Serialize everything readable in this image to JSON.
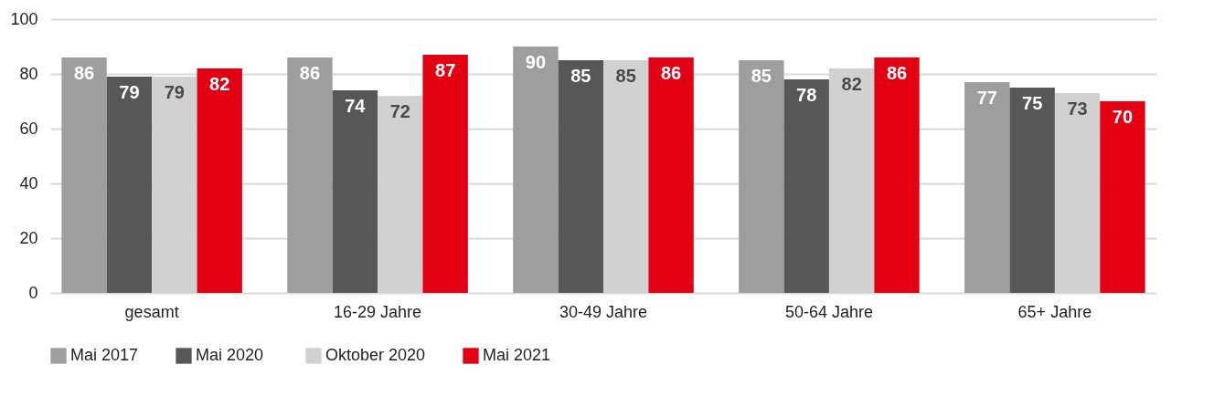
{
  "chart_data": {
    "type": "bar",
    "categories": [
      "gesamt",
      "16-29 Jahre",
      "30-49 Jahre",
      "50-64 Jahre",
      "65+ Jahre"
    ],
    "series": [
      {
        "name": "Mai 2017",
        "color": "#9d9e9d",
        "values": [
          86,
          86,
          90,
          85,
          77
        ]
      },
      {
        "name": "Mai  2020",
        "color": "#575757",
        "values": [
          79,
          74,
          85,
          78,
          75
        ]
      },
      {
        "name": "Oktober 2020",
        "color": "#d0d1d0",
        "values": [
          79,
          72,
          85,
          82,
          73
        ]
      },
      {
        "name": "Mai  2021",
        "color": "#e20012",
        "values": [
          82,
          87,
          86,
          86,
          70
        ]
      }
    ],
    "ylim": [
      0,
      100
    ],
    "yticks": [
      0,
      20,
      40,
      60,
      80,
      100
    ],
    "grid": "y",
    "legend": "bottom left",
    "data_labels": true
  }
}
